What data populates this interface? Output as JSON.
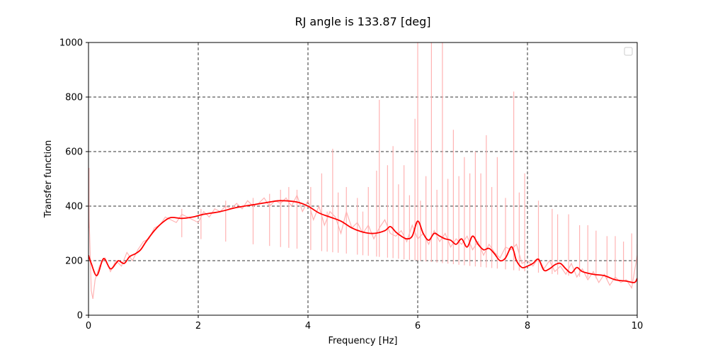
{
  "chart_data": {
    "type": "line",
    "title": "RJ angle is 133.87 [deg]",
    "xlabel": "Frequency [Hz]",
    "ylabel": "Transfer function",
    "xlim": [
      0,
      10
    ],
    "ylim": [
      0,
      1000
    ],
    "x_ticks": [
      0,
      2,
      4,
      6,
      8,
      10
    ],
    "y_ticks": [
      0,
      200,
      400,
      600,
      800,
      1000
    ],
    "x_tick_labels": [
      "0",
      "2",
      "4",
      "6",
      "8",
      "10"
    ],
    "y_tick_labels": [
      "0",
      "200",
      "400",
      "600",
      "800",
      "1000"
    ],
    "grid": true,
    "legend": "top-right (empty)",
    "series": [
      {
        "color": "#ff0000",
        "style": "smooth",
        "x": [
          0.0,
          0.05,
          0.15,
          0.25,
          0.3,
          0.4,
          0.5,
          0.55,
          0.65,
          0.75,
          0.85,
          0.95,
          1.05,
          1.2,
          1.35,
          1.5,
          1.7,
          1.9,
          2.1,
          2.4,
          2.7,
          3.0,
          3.3,
          3.5,
          3.8,
          4.0,
          4.2,
          4.4,
          4.6,
          4.8,
          5.0,
          5.2,
          5.4,
          5.5,
          5.6,
          5.7,
          5.8,
          5.9,
          6.0,
          6.1,
          6.2,
          6.3,
          6.4,
          6.5,
          6.6,
          6.7,
          6.8,
          6.9,
          7.0,
          7.1,
          7.2,
          7.3,
          7.4,
          7.5,
          7.6,
          7.7,
          7.75,
          7.8,
          7.9,
          8.0,
          8.1,
          8.2,
          8.3,
          8.4,
          8.5,
          8.6,
          8.7,
          8.8,
          8.9,
          9.0,
          9.2,
          9.4,
          9.6,
          9.8,
          9.95,
          10.0
        ],
        "y": [
          220,
          190,
          145,
          200,
          205,
          170,
          190,
          200,
          190,
          215,
          225,
          240,
          270,
          310,
          340,
          358,
          355,
          360,
          370,
          380,
          395,
          405,
          415,
          420,
          415,
          400,
          375,
          360,
          345,
          320,
          305,
          300,
          310,
          325,
          305,
          290,
          280,
          290,
          345,
          300,
          275,
          300,
          290,
          280,
          275,
          260,
          280,
          250,
          290,
          260,
          240,
          245,
          225,
          200,
          210,
          250,
          235,
          200,
          175,
          180,
          190,
          205,
          165,
          170,
          185,
          190,
          170,
          155,
          175,
          160,
          150,
          145,
          130,
          125,
          120,
          135
        ]
      },
      {
        "color": "#ffb3b3",
        "style": "raw noisy",
        "x": [
          0.0,
          0.02,
          0.05,
          0.08,
          0.12,
          0.2,
          0.3,
          0.4,
          0.5,
          0.6,
          0.7,
          0.8,
          0.9,
          1.0,
          1.1,
          1.2,
          1.3,
          1.4,
          1.5,
          1.6,
          1.7,
          1.8,
          1.9,
          2.0,
          2.1,
          2.2,
          2.3,
          2.4,
          2.5,
          2.6,
          2.7,
          2.8,
          2.9,
          3.0,
          3.1,
          3.2,
          3.3,
          3.4,
          3.5,
          3.6,
          3.7,
          3.8,
          3.9,
          4.0,
          4.1,
          4.2,
          4.3,
          4.4,
          4.5,
          4.6,
          4.7,
          4.8,
          4.9,
          5.0,
          5.1,
          5.2,
          5.3,
          5.4,
          5.5,
          5.6,
          5.7,
          5.8,
          5.9,
          6.0,
          6.1,
          6.2,
          6.3,
          6.4,
          6.5,
          6.6,
          6.7,
          6.8,
          6.9,
          7.0,
          7.1,
          7.2,
          7.3,
          7.4,
          7.5,
          7.6,
          7.7,
          7.8,
          7.9,
          8.0,
          8.1,
          8.2,
          8.3,
          8.4,
          8.5,
          8.6,
          8.7,
          8.8,
          8.9,
          9.0,
          9.1,
          9.2,
          9.3,
          9.4,
          9.5,
          9.6,
          9.7,
          9.8,
          9.9,
          10.0
        ],
        "y": [
          430,
          300,
          90,
          60,
          130,
          180,
          210,
          160,
          200,
          180,
          230,
          200,
          240,
          270,
          280,
          320,
          330,
          360,
          350,
          340,
          370,
          360,
          350,
          340,
          380,
          360,
          390,
          380,
          400,
          390,
          410,
          390,
          420,
          400,
          410,
          430,
          400,
          420,
          410,
          430,
          400,
          440,
          380,
          420,
          350,
          400,
          330,
          380,
          360,
          300,
          380,
          320,
          340,
          300,
          330,
          280,
          320,
          350,
          300,
          290,
          310,
          270,
          330,
          280,
          300,
          260,
          310,
          270,
          300,
          250,
          280,
          260,
          290,
          240,
          270,
          220,
          260,
          230,
          210,
          250,
          240,
          260,
          190,
          200,
          180,
          210,
          170,
          200,
          160,
          180,
          150,
          190,
          140,
          170,
          130,
          160,
          120,
          150,
          110,
          140,
          120,
          130,
          100,
          220
        ]
      },
      {
        "color": "#ffb3b3",
        "style": "spikes",
        "x": [
          0.01,
          1.7,
          2.05,
          2.5,
          3.0,
          3.3,
          3.5,
          3.65,
          3.8,
          4.05,
          4.25,
          4.35,
          4.45,
          4.55,
          4.7,
          4.9,
          5.0,
          5.1,
          5.25,
          5.3,
          5.45,
          5.55,
          5.65,
          5.75,
          5.85,
          5.95,
          6.0,
          6.05,
          6.15,
          6.25,
          6.35,
          6.45,
          6.55,
          6.65,
          6.75,
          6.85,
          6.95,
          7.05,
          7.15,
          7.25,
          7.35,
          7.45,
          7.6,
          7.75,
          7.85,
          7.95,
          8.2,
          8.45,
          8.55,
          8.75,
          8.95,
          9.1,
          9.25,
          9.45,
          9.6,
          9.75,
          9.9,
          10.0
        ],
        "y": [
          540,
          390,
          390,
          420,
          430,
          445,
          460,
          470,
          460,
          470,
          520,
          380,
          610,
          450,
          470,
          430,
          380,
          470,
          530,
          790,
          550,
          620,
          480,
          550,
          440,
          720,
          1000,
          420,
          510,
          1000,
          460,
          1000,
          500,
          680,
          510,
          580,
          520,
          600,
          520,
          660,
          470,
          580,
          430,
          820,
          450,
          520,
          420,
          390,
          370,
          370,
          330,
          330,
          310,
          290,
          290,
          270,
          300,
          260
        ]
      }
    ]
  }
}
